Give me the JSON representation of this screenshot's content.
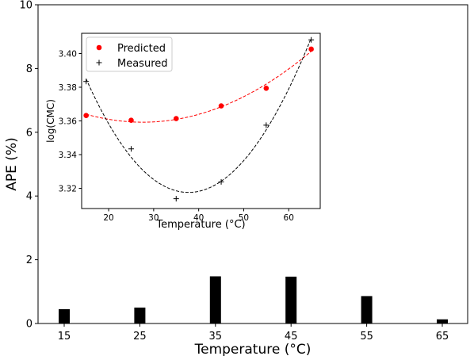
{
  "chart_data": [
    {
      "type": "bar",
      "categories": [
        "15",
        "25",
        "35",
        "45",
        "55",
        "65"
      ],
      "values": [
        0.45,
        0.5,
        1.48,
        1.47,
        0.86,
        0.13
      ],
      "xlabel": "Temperature (°C)",
      "ylabel": "APE (%)",
      "ylim": [
        0,
        10
      ],
      "yticks": [
        "0",
        "2",
        "4",
        "6",
        "8",
        "10"
      ],
      "colors": {
        "bar": "#000000"
      },
      "grid": false
    },
    {
      "type": "line",
      "x": [
        15,
        25,
        35,
        45,
        55,
        65
      ],
      "xlabel": "Temperature (°C)",
      "ylabel": "log(CMC)",
      "xlim": [
        14,
        67
      ],
      "ylim": [
        3.308,
        3.412
      ],
      "xticks": [
        "20",
        "30",
        "40",
        "50",
        "60"
      ],
      "yticks": [
        "3.32",
        "3.34",
        "3.36",
        "3.38",
        "3.40"
      ],
      "legend_position": "top-left",
      "grid": false,
      "series": [
        {
          "name": "Predicted",
          "marker": "circle",
          "color": "#ff0000",
          "values": [
            3.3632,
            3.3604,
            3.3614,
            3.3689,
            3.3794,
            3.4026
          ],
          "fit": "dashed"
        },
        {
          "name": "Measured",
          "marker": "plus",
          "color": "#000000",
          "values": [
            3.3834,
            3.3434,
            3.3138,
            3.3238,
            3.3575,
            3.4081
          ],
          "fit": "dashed"
        }
      ]
    }
  ]
}
